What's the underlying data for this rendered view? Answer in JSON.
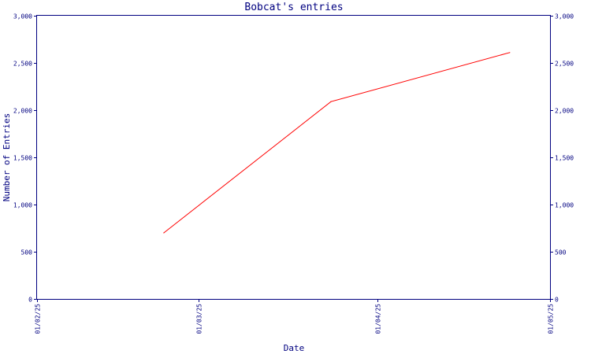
{
  "chart_data": {
    "type": "line",
    "title": "Bobcat's entries",
    "xlabel": "Date",
    "ylabel": "Number of Entries",
    "x_tick_labels": [
      "01/02/25",
      "01/03/25",
      "01/04/25",
      "01/05/25"
    ],
    "x_tick_dates": [
      "2025-02-01",
      "2025-03-01",
      "2025-04-01",
      "2025-05-01"
    ],
    "xlim": [
      "2025-02-01",
      "2025-05-01"
    ],
    "y_tick_labels": [
      "0",
      "500",
      "1,000",
      "1,500",
      "2,000",
      "2,500",
      "3,000"
    ],
    "y_tick_values": [
      0,
      500,
      1000,
      1500,
      2000,
      2500,
      3000
    ],
    "ylim": [
      0,
      3000
    ],
    "right_axis_mirror": true,
    "grid": false,
    "series": [
      {
        "color": "#ff0000",
        "x": [
          "2025-02-23",
          "2025-03-24",
          "2025-04-24"
        ],
        "y": [
          700,
          2090,
          2610
        ]
      }
    ]
  },
  "colors": {
    "axis": "#000080",
    "line": "#ff0000",
    "background": "#ffffff"
  }
}
